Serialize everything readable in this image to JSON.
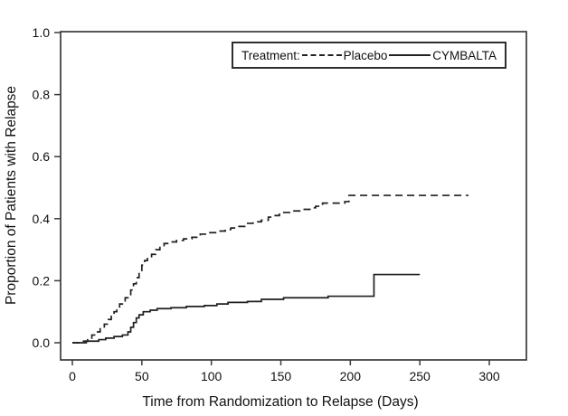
{
  "colors": {
    "background": "#ffffff",
    "frame": "#3a3a3a",
    "tick": "#3a3a3a",
    "text": "#111111",
    "placebo_line": "#1f1f1f",
    "cymbalta_line": "#1f1f1f"
  },
  "legend": {
    "title": "Treatment:",
    "placebo_label": "Placebo",
    "cymbalta_label": "CYMBALTA"
  },
  "chart_data": {
    "type": "line",
    "subtype": "step-survival",
    "title": "",
    "xlabel": "Time from Randomization to Relapse (Days)",
    "ylabel": "Proportion of Patients with Relapse",
    "xlim": [
      0,
      300
    ],
    "ylim": [
      0.0,
      1.0
    ],
    "xticks": [
      0,
      50,
      100,
      150,
      200,
      250,
      300
    ],
    "yticks": [
      0.0,
      0.2,
      0.4,
      0.6,
      0.8,
      1.0
    ],
    "grid": false,
    "legend_position": "top-right-inside",
    "legend_title": "Treatment:",
    "series": [
      {
        "name": "Placebo",
        "style": "dashed",
        "end_day": 285,
        "steps": [
          [
            0,
            0.0
          ],
          [
            8,
            0.005
          ],
          [
            11,
            0.015
          ],
          [
            14,
            0.025
          ],
          [
            17,
            0.035
          ],
          [
            20,
            0.045
          ],
          [
            23,
            0.06
          ],
          [
            26,
            0.075
          ],
          [
            28,
            0.085
          ],
          [
            30,
            0.1
          ],
          [
            32,
            0.11
          ],
          [
            34,
            0.125
          ],
          [
            36,
            0.135
          ],
          [
            38,
            0.145
          ],
          [
            40,
            0.155
          ],
          [
            42,
            0.17
          ],
          [
            44,
            0.19
          ],
          [
            46,
            0.21
          ],
          [
            48,
            0.23
          ],
          [
            50,
            0.25
          ],
          [
            52,
            0.265
          ],
          [
            54,
            0.275
          ],
          [
            57,
            0.285
          ],
          [
            60,
            0.3
          ],
          [
            63,
            0.31
          ],
          [
            66,
            0.32
          ],
          [
            70,
            0.325
          ],
          [
            75,
            0.33
          ],
          [
            80,
            0.335
          ],
          [
            86,
            0.34
          ],
          [
            92,
            0.35
          ],
          [
            98,
            0.355
          ],
          [
            104,
            0.36
          ],
          [
            110,
            0.365
          ],
          [
            114,
            0.37
          ],
          [
            119,
            0.375
          ],
          [
            124,
            0.385
          ],
          [
            130,
            0.39
          ],
          [
            136,
            0.395
          ],
          [
            141,
            0.405
          ],
          [
            145,
            0.41
          ],
          [
            149,
            0.42
          ],
          [
            157,
            0.425
          ],
          [
            165,
            0.43
          ],
          [
            172,
            0.435
          ],
          [
            175,
            0.44
          ],
          [
            180,
            0.45
          ],
          [
            196,
            0.455
          ],
          [
            199,
            0.475
          ]
        ]
      },
      {
        "name": "CYMBALTA",
        "style": "solid",
        "end_day": 250,
        "steps": [
          [
            0,
            0.0
          ],
          [
            10,
            0.005
          ],
          [
            19,
            0.01
          ],
          [
            24,
            0.015
          ],
          [
            30,
            0.02
          ],
          [
            36,
            0.025
          ],
          [
            40,
            0.035
          ],
          [
            42,
            0.05
          ],
          [
            44,
            0.065
          ],
          [
            46,
            0.08
          ],
          [
            48,
            0.09
          ],
          [
            51,
            0.1
          ],
          [
            56,
            0.105
          ],
          [
            61,
            0.11
          ],
          [
            71,
            0.113
          ],
          [
            82,
            0.117
          ],
          [
            95,
            0.12
          ],
          [
            104,
            0.125
          ],
          [
            112,
            0.13
          ],
          [
            126,
            0.133
          ],
          [
            136,
            0.14
          ],
          [
            152,
            0.145
          ],
          [
            184,
            0.15
          ],
          [
            217,
            0.22
          ]
        ]
      }
    ]
  }
}
